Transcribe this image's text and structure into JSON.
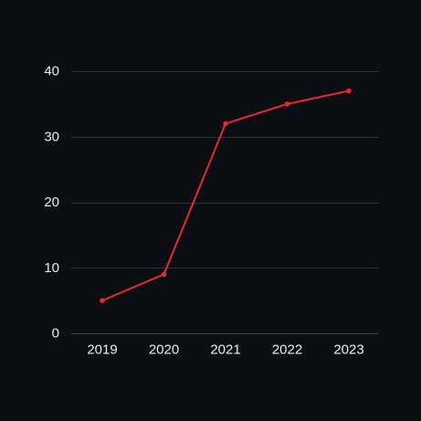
{
  "chart_data": {
    "type": "line",
    "title": "",
    "xlabel": "",
    "ylabel": "",
    "categories": [
      "2019",
      "2020",
      "2021",
      "2022",
      "2023"
    ],
    "series": [
      {
        "values": [
          5,
          9,
          32,
          35,
          37
        ],
        "color": "#e8282e"
      }
    ],
    "ylim": [
      0,
      40
    ],
    "yticks": [
      "0",
      "10",
      "20",
      "30",
      "40"
    ],
    "grid": true,
    "legend": "none",
    "colors": {
      "background": "#0b0f14",
      "grid": "#2a2f36",
      "text": "#e9ecef"
    }
  }
}
